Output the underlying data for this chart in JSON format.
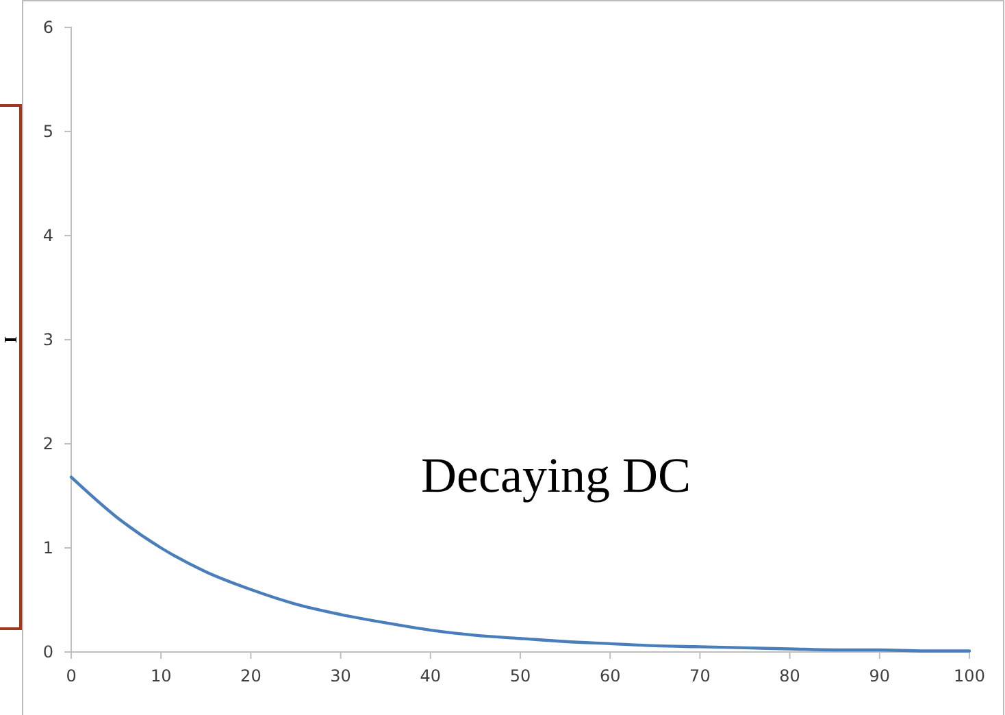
{
  "chart_data": {
    "type": "line",
    "ylabel": "I",
    "annotations": [
      "Decaying DC"
    ],
    "x": [
      0,
      5,
      10,
      15,
      20,
      25,
      30,
      35,
      40,
      45,
      50,
      55,
      60,
      65,
      70,
      75,
      80,
      85,
      90,
      95,
      100
    ],
    "series": [
      {
        "color": "#4a7ebb",
        "values": [
          1.68,
          1.3,
          1.0,
          0.77,
          0.6,
          0.46,
          0.36,
          0.28,
          0.21,
          0.16,
          0.13,
          0.1,
          0.08,
          0.06,
          0.05,
          0.04,
          0.03,
          0.02,
          0.02,
          0.01,
          0.01
        ]
      }
    ],
    "xlim": [
      0,
      100
    ],
    "xticks": [
      0,
      10,
      20,
      30,
      40,
      50,
      60,
      70,
      80,
      90,
      100
    ],
    "ylim": [
      0,
      6
    ],
    "yticks": [
      0,
      1,
      2,
      3,
      4,
      5,
      6
    ],
    "grid": false
  }
}
